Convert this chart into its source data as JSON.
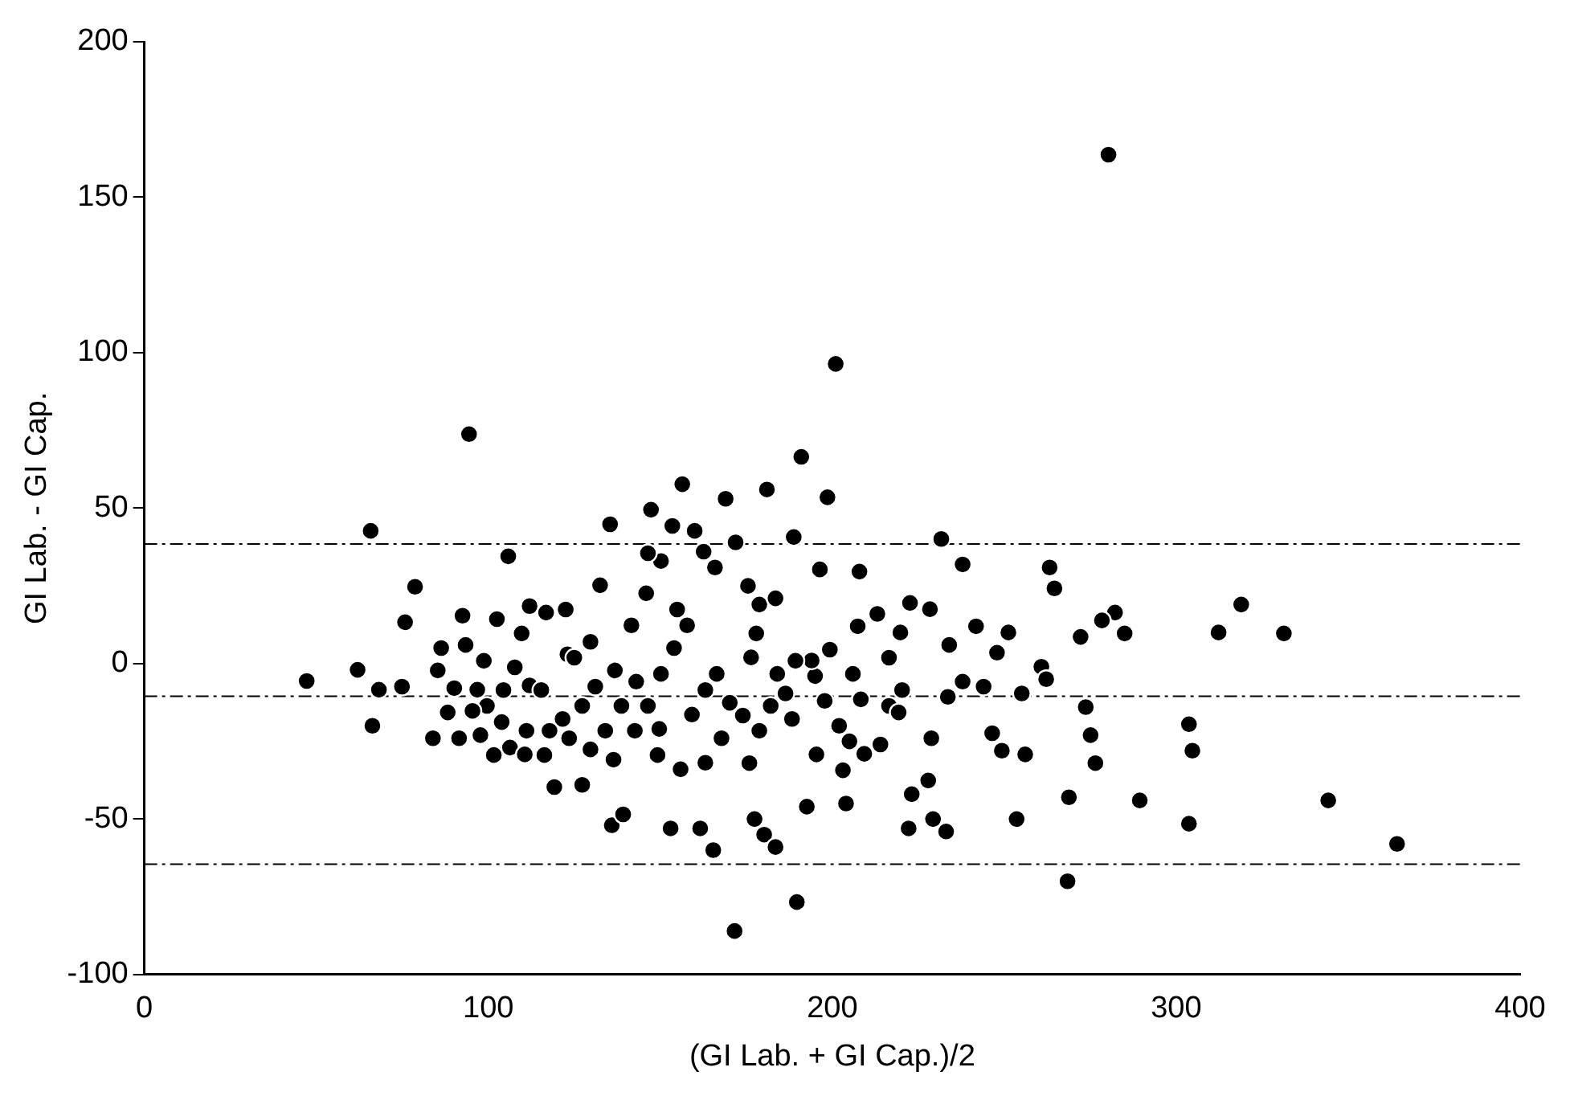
{
  "chart_data": {
    "type": "scatter",
    "xlabel": "(GI Lab. + GI Cap.)/2",
    "ylabel": "GI Lab. - GI Cap.",
    "xlim": [
      0,
      400
    ],
    "xticks": [
      0,
      100,
      200,
      300,
      400
    ],
    "ylim": [
      -100,
      200
    ],
    "yticks": [
      -100,
      -50,
      0,
      50,
      100,
      150,
      200
    ],
    "grid": false,
    "legend": false,
    "marker": "circle",
    "series": [
      {
        "color": "#000000",
        "x": [
          47.2,
          62,
          65.8,
          66.3,
          68.2,
          75.8,
          78.7,
          74.9,
          83.9,
          94.4,
          105.8,
          156.4,
          162.6,
          169,
          181,
          201,
          191,
          198.6,
          188.8,
          196.4,
          280.3,
          171.6,
          189.7,
          268.4,
          364.2,
          344.2,
          303.7,
          303.7,
          304.7,
          289.4,
          268.8,
          312.3,
          331.3,
          318.9,
          282.2,
          263.2,
          264.6,
          285,
          278.4,
          272.2,
          273.7,
          275.1,
          276.5,
          260.8,
          262.2,
          247.9,
          246.5,
          249.3,
          253.6,
          251.2,
          241.8,
          237.9,
          231.7,
          234,
          233.6,
          228.8,
          227.9,
          222.2,
          223.1,
          233.1,
          229.3,
          228.4,
          222.6,
          219.8,
          216.5,
          213.1,
          207.9,
          207.4,
          205,
          204,
          208.3,
          209.3,
          214,
          216.5,
          195,
          197.8,
          192.6,
          194,
          199.3,
          202,
          171.9,
          160,
          147.3,
          135.4,
          165.9,
          153.5,
          178.8,
          183.5,
          176.4,
          161.6,
          165.4,
          153,
          177.4,
          180.2,
          183.5,
          175.9,
          155.9,
          149.7,
          145.9,
          141.6,
          138.7,
          136.4,
          135.9,
          139.2,
          127.3,
          119.2,
          116.3,
          127.3,
          123,
          129.7,
          132.5,
          122.5,
          112,
          116.8,
          109.7,
          102.5,
          98.7,
          92.5,
          93.4,
          96.8,
          90.1,
          85.3,
          86.3,
          88.2,
          91.5,
          97.7,
          103.9,
          106.3,
          110.6,
          112,
          104.4,
          99.6,
          107.7,
          115.4,
          121.6,
          123.5,
          129.7,
          134,
          131.1,
          136.8,
          143,
          146.4,
          150.2,
          154,
          157.8,
          159.2,
          163.1,
          166.4,
          170.2,
          174,
          178.8,
          182.1,
          184,
          186.4,
          189.3,
          167.8,
          163.1,
          149.2,
          142.6,
          154.9,
          150.2,
          146.4,
          125,
          117.8,
          111.1,
          101.6,
          95.4,
          177.9,
          175.5,
          188.3,
          195.4,
          206,
          220.3,
          237.9,
          244,
          255.1,
          256.1,
          219.3,
          203.1
        ],
        "values": [
          -5.6,
          -2,
          42.7,
          -20,
          -8.4,
          13.3,
          24.7,
          -7.4,
          -24,
          73.8,
          34.5,
          57.7,
          36,
          53,
          56,
          96.4,
          66.5,
          53.5,
          40.7,
          30.3,
          163.7,
          -86,
          -76.7,
          -70,
          -58,
          -44,
          -51.5,
          -19.5,
          -28,
          -44,
          -43,
          10,
          9.7,
          19,
          16.4,
          30.9,
          24.2,
          9.7,
          13.9,
          8.6,
          -14,
          -23,
          -32,
          -1,
          -5,
          3.5,
          -22.4,
          -28,
          -50,
          10,
          12,
          31.9,
          40.1,
          6,
          -10.7,
          -24,
          -37.6,
          -53,
          -42,
          -54,
          -50,
          17.5,
          19.5,
          10,
          1.9,
          16,
          29.6,
          12,
          -25,
          -45,
          -11.5,
          -29,
          -26,
          -13.6,
          -4,
          -12,
          -46,
          1,
          4.5,
          -20,
          39,
          42.7,
          49.5,
          44.8,
          30.9,
          44.3,
          19,
          21,
          2,
          -53,
          -60,
          -53,
          -50,
          -55,
          -59,
          -32,
          -34,
          -21,
          22.6,
          12.3,
          -13.6,
          -30.9,
          -52,
          -48.5,
          -39,
          -39.7,
          -29.4,
          -13.6,
          3,
          7,
          25.2,
          17.4,
          18.5,
          16.4,
          9.7,
          14.3,
          0.9,
          15.4,
          6,
          -8.4,
          -7.9,
          -2.2,
          5,
          -15.7,
          -24,
          -23,
          -18.8,
          -27,
          -29.2,
          -7,
          -8.5,
          -13.6,
          -1.2,
          -8.5,
          -17.8,
          -24,
          -27.6,
          -21.6,
          -7.4,
          -2.2,
          -5.8,
          -13.6,
          -3.3,
          5,
          12.3,
          -16.4,
          -8.5,
          -3.3,
          -12.6,
          -16.7,
          -21.6,
          -13.6,
          -3.3,
          -9.6,
          0.9,
          -24,
          -31.9,
          -29.4,
          -21.6,
          17.4,
          33,
          35.5,
          1.9,
          -21.6,
          -21.6,
          -29.4,
          -15.2,
          9.7,
          25,
          -17.8,
          -29.2,
          -3.3,
          -8.5,
          -5.8,
          -7.4,
          -9.6,
          -29.2,
          -15.7,
          -34.3
        ]
      }
    ],
    "ref_lines": [
      {
        "axis": "y",
        "value": 38.5,
        "line_style": "dashdot",
        "color": "#000000"
      },
      {
        "axis": "y",
        "value": -10.5,
        "line_style": "dashdot",
        "color": "#000000"
      },
      {
        "axis": "y",
        "value": -64.5,
        "line_style": "dashdot",
        "color": "#000000"
      }
    ]
  }
}
